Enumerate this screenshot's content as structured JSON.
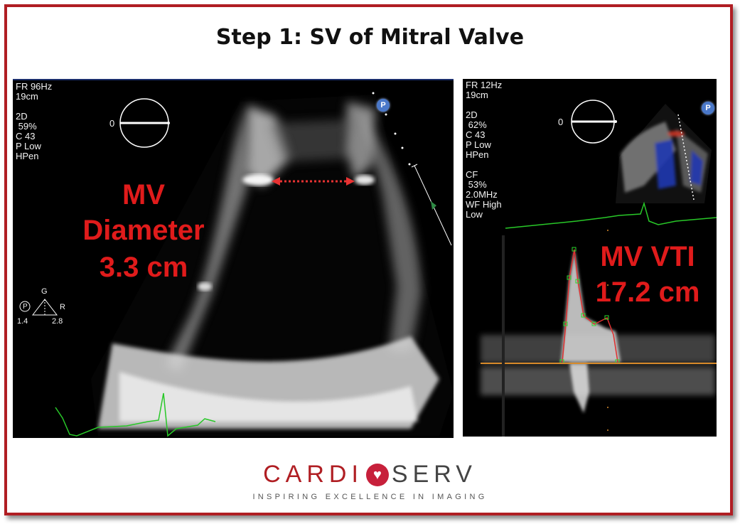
{
  "title": "Step 1: SV of Mitral Valve",
  "left_panel": {
    "settings": "FR 96Hz\n19cm\n\n2D\n 59%\nC 43\nP Low\nHPen",
    "angle_label": "0",
    "mv_label": "MV",
    "diameter_label": "Diameter",
    "diameter_value": "3.3 cm",
    "probe_g": "G",
    "probe_r": "R",
    "probe_p": "P",
    "scale_left": "1.4",
    "scale_right": "2.8",
    "badge": "P"
  },
  "right_panel": {
    "settings": "FR 12Hz\n19cm\n\n2D\n 62%\nC 43\nP Low\nHPen\n\nCF\n 53%\n2.0MHz\nWF High\nLow",
    "angle_label": "0",
    "vti_label": "MV VTI",
    "vti_value": "17.2 cm",
    "badge": "P"
  },
  "logo": {
    "part1": "CARDI",
    "part2": "SERV",
    "tagline": "INSPIRING EXCELLENCE IN IMAGING"
  },
  "colors": {
    "frame": "#b01e23",
    "label_red": "#e01b1b",
    "ecg_green": "#28c828",
    "baseline": "#d78a2a"
  }
}
